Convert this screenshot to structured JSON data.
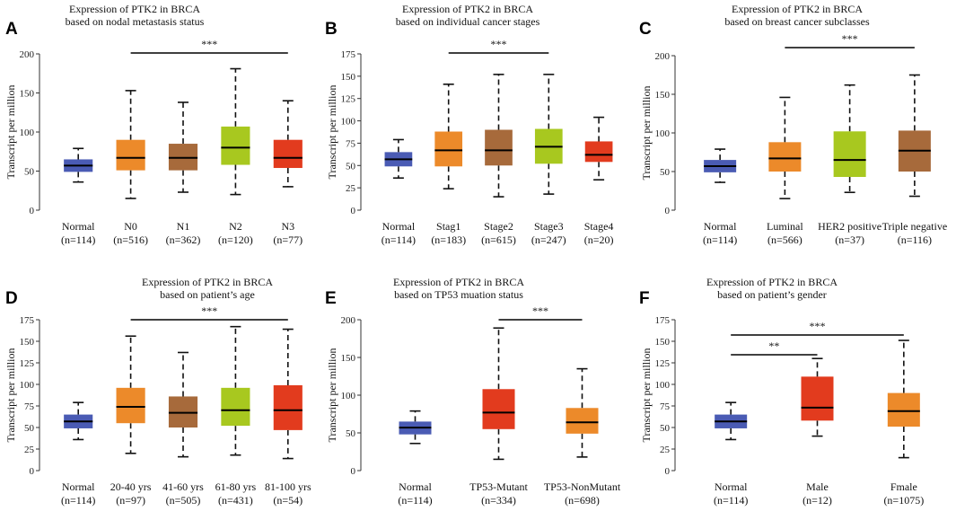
{
  "colors": {
    "normal": "#4a5bb4",
    "orange": "#ec8a2a",
    "brown": "#a76a3b",
    "green": "#a8c81f",
    "red": "#e23b1e"
  },
  "chart_data": [
    {
      "panel": "A",
      "type": "box",
      "title": [
        "Expression of PTK2 in BRCA",
        "based on nodal metastasis status"
      ],
      "ylabel": "Transcript per million",
      "ylim": [
        0,
        200
      ],
      "yticks": [
        "0",
        "50",
        "100",
        "150",
        "200"
      ],
      "categories": [
        "Normal",
        "N0",
        "N1",
        "N2",
        "N3"
      ],
      "counts": [
        "(n=114)",
        "(n=516)",
        "(n=362)",
        "(n=120)",
        "(n=77)"
      ],
      "colors": [
        "normal",
        "orange",
        "brown",
        "green",
        "red"
      ],
      "boxes": [
        {
          "min": 36,
          "q1": 49,
          "median": 57,
          "q3": 65,
          "max": 79
        },
        {
          "min": 15,
          "q1": 51,
          "median": 67,
          "q3": 90,
          "max": 153
        },
        {
          "min": 23,
          "q1": 51,
          "median": 67,
          "q3": 85,
          "max": 138
        },
        {
          "min": 20,
          "q1": 58,
          "median": 80,
          "q3": 107,
          "max": 181
        },
        {
          "min": 30,
          "q1": 54,
          "median": 67,
          "q3": 90,
          "max": 140
        }
      ],
      "significance": [
        {
          "from": 1,
          "to": 4,
          "label": "***"
        }
      ]
    },
    {
      "panel": "B",
      "type": "box",
      "title": [
        "Expression of PTK2 in BRCA",
        "based on individual cancer stages"
      ],
      "ylabel": "Transcript per million",
      "ylim": [
        0,
        175
      ],
      "yticks": [
        "0",
        "25",
        "50",
        "75",
        "100",
        "125",
        "150",
        "175"
      ],
      "categories": [
        "Normal",
        "Stag1",
        "Stage2",
        "Stage3",
        "Stage4"
      ],
      "counts": [
        "(n=114)",
        "(n=183)",
        "(n=615)",
        "(n=247)",
        "(n=20)"
      ],
      "colors": [
        "normal",
        "orange",
        "brown",
        "green",
        "red"
      ],
      "boxes": [
        {
          "min": 36,
          "q1": 49,
          "median": 57,
          "q3": 65,
          "max": 79
        },
        {
          "min": 24,
          "q1": 49,
          "median": 67,
          "q3": 88,
          "max": 141
        },
        {
          "min": 15,
          "q1": 50,
          "median": 67,
          "q3": 90,
          "max": 152
        },
        {
          "min": 18,
          "q1": 52,
          "median": 71,
          "q3": 91,
          "max": 152
        },
        {
          "min": 34,
          "q1": 54,
          "median": 62,
          "q3": 77,
          "max": 104
        }
      ],
      "significance": [
        {
          "from": 1,
          "to": 3,
          "label": "***"
        }
      ]
    },
    {
      "panel": "C",
      "type": "box",
      "title": [
        "Expression of PTK2 in BRCA",
        "based on breast cancer subclasses"
      ],
      "ylabel": "Transcript per million",
      "ylim": [
        0,
        200
      ],
      "yticks": [
        "0",
        "50",
        "100",
        "150",
        "200"
      ],
      "categories": [
        "Normal",
        "Luminal",
        "HER2 positive",
        "Triple negative"
      ],
      "counts": [
        "(n=114)",
        "(n=566)",
        "(n=37)",
        "(n=116)"
      ],
      "colors": [
        "normal",
        "orange",
        "green",
        "brown"
      ],
      "boxes": [
        {
          "min": 36,
          "q1": 49,
          "median": 57,
          "q3": 65,
          "max": 79
        },
        {
          "min": 15,
          "q1": 50,
          "median": 67,
          "q3": 88,
          "max": 146
        },
        {
          "min": 23,
          "q1": 43,
          "median": 65,
          "q3": 102,
          "max": 162
        },
        {
          "min": 18,
          "q1": 50,
          "median": 77,
          "q3": 103,
          "max": 175
        }
      ],
      "significance": [
        {
          "from": 1,
          "to": 3,
          "label": "***"
        }
      ]
    },
    {
      "panel": "D",
      "type": "box",
      "title": [
        "Expression of PTK2 in BRCA",
        "based on patient’s age"
      ],
      "ylabel": "Transcript per million",
      "ylim": [
        0,
        175
      ],
      "yticks": [
        "0",
        "25",
        "50",
        "75",
        "100",
        "125",
        "150",
        "175"
      ],
      "categories": [
        "Normal",
        "20-40 yrs",
        "41-60 yrs",
        "61-80 yrs",
        "81-100 yrs"
      ],
      "counts": [
        "(n=114)",
        "(n=97)",
        "(n=505)",
        "(n=431)",
        "(n=54)"
      ],
      "colors": [
        "normal",
        "orange",
        "brown",
        "green",
        "red"
      ],
      "boxes": [
        {
          "min": 36,
          "q1": 49,
          "median": 57,
          "q3": 65,
          "max": 79
        },
        {
          "min": 20,
          "q1": 55,
          "median": 74,
          "q3": 96,
          "max": 156
        },
        {
          "min": 16,
          "q1": 50,
          "median": 67,
          "q3": 86,
          "max": 137
        },
        {
          "min": 18,
          "q1": 52,
          "median": 70,
          "q3": 96,
          "max": 167
        },
        {
          "min": 14,
          "q1": 47,
          "median": 70,
          "q3": 99,
          "max": 164
        }
      ],
      "significance": [
        {
          "from": 1,
          "to": 4,
          "label": "***"
        }
      ]
    },
    {
      "panel": "E",
      "type": "box",
      "title": [
        "Expression of PTK2 in BRCA",
        "based on TP53 muation status"
      ],
      "ylabel": "Transcript per million",
      "ylim": [
        0,
        200
      ],
      "yticks": [
        "0",
        "50",
        "100",
        "150",
        "200"
      ],
      "categories": [
        "Normal",
        "TP53-Mutant",
        "TP53-NonMutant"
      ],
      "counts": [
        "(n=114)",
        "(n=334)",
        "(n=698)"
      ],
      "colors": [
        "normal",
        "red",
        "orange"
      ],
      "boxes": [
        {
          "min": 36,
          "q1": 48,
          "median": 57,
          "q3": 65,
          "max": 79
        },
        {
          "min": 15,
          "q1": 55,
          "median": 77,
          "q3": 108,
          "max": 189
        },
        {
          "min": 18,
          "q1": 49,
          "median": 64,
          "q3": 83,
          "max": 135
        }
      ],
      "significance": [
        {
          "from": 1,
          "to": 2,
          "label": "***"
        }
      ]
    },
    {
      "panel": "F",
      "type": "box",
      "title": [
        "Expression of PTK2 in BRCA",
        "based on patient’s gender"
      ],
      "ylabel": "Transcript per million",
      "ylim": [
        0,
        175
      ],
      "yticks": [
        "0",
        "25",
        "50",
        "75",
        "100",
        "125",
        "150",
        "175"
      ],
      "categories": [
        "Normal",
        "Male",
        "Fmale"
      ],
      "counts": [
        "(n=114)",
        "(n=12)",
        "(n=1075)"
      ],
      "colors": [
        "normal",
        "red",
        "orange"
      ],
      "boxes": [
        {
          "min": 36,
          "q1": 49,
          "median": 57,
          "q3": 65,
          "max": 79
        },
        {
          "min": 40,
          "q1": 58,
          "median": 73,
          "q3": 109,
          "max": 130
        },
        {
          "min": 15,
          "q1": 51,
          "median": 69,
          "q3": 90,
          "max": 151
        }
      ],
      "significance": [
        {
          "from": 0,
          "to": 2,
          "label": "***"
        },
        {
          "from": 0,
          "to": 1,
          "label": "**"
        }
      ]
    }
  ]
}
